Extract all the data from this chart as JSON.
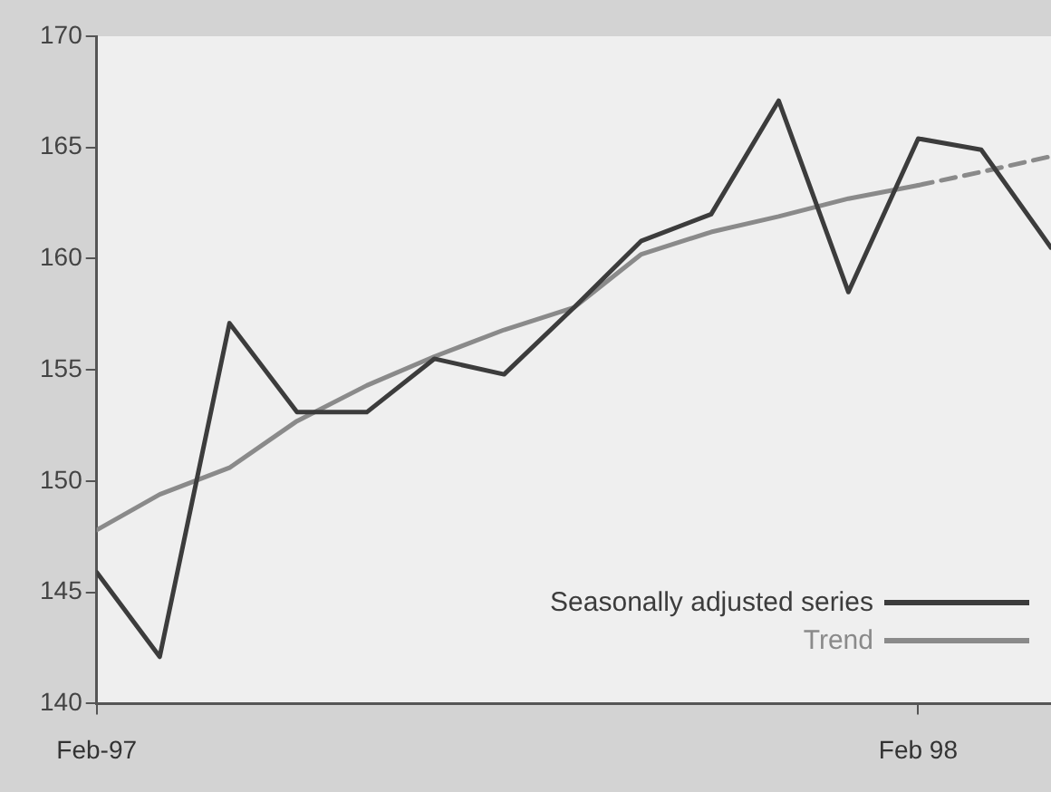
{
  "chart_data": {
    "type": "line",
    "ylim": [
      140,
      170
    ],
    "yticks": [
      140,
      145,
      150,
      155,
      160,
      165,
      170
    ],
    "xlim": [
      "1997-02",
      "1998-04"
    ],
    "xticks": [
      {
        "value": "1997-02",
        "label": "Feb-97"
      },
      {
        "value": "1998-02",
        "label": "Feb 98"
      }
    ],
    "grid": false,
    "legend": "bottom right",
    "marker": "none",
    "series": [
      {
        "name": "Seasonally adjusted series",
        "color": "#3c3c3c",
        "line_style": "solid",
        "x": [
          "1997-02",
          "1997-03",
          "1997-04",
          "1997-05",
          "1997-06",
          "1997-07",
          "1997-08",
          "1997-09",
          "1997-10",
          "1997-11",
          "1997-12",
          "1998-01",
          "1998-02",
          "1998-03",
          "1998-04"
        ],
        "values": [
          145.9,
          142.1,
          157.1,
          153.1,
          153.1,
          155.5,
          154.8,
          157.8,
          160.8,
          162.0,
          167.1,
          158.5,
          165.4,
          164.9,
          160.5
        ]
      },
      {
        "name": "Trend",
        "color": "#8a8a8a",
        "line_style": "solid",
        "x": [
          "1997-02",
          "1997-03",
          "1997-04",
          "1997-05",
          "1997-06",
          "1997-07",
          "1997-08",
          "1997-09",
          "1997-10",
          "1997-11",
          "1997-12",
          "1998-01",
          "1998-02"
        ],
        "values": [
          147.8,
          149.4,
          150.6,
          152.7,
          154.3,
          155.6,
          156.8,
          157.8,
          160.2,
          161.2,
          161.9,
          162.7,
          163.3
        ]
      },
      {
        "color": "#8a8a8a",
        "line_style": "dashed",
        "x": [
          "1998-02",
          "1998-03",
          "1998-04"
        ],
        "values": [
          163.3,
          163.9,
          164.6
        ]
      }
    ]
  }
}
